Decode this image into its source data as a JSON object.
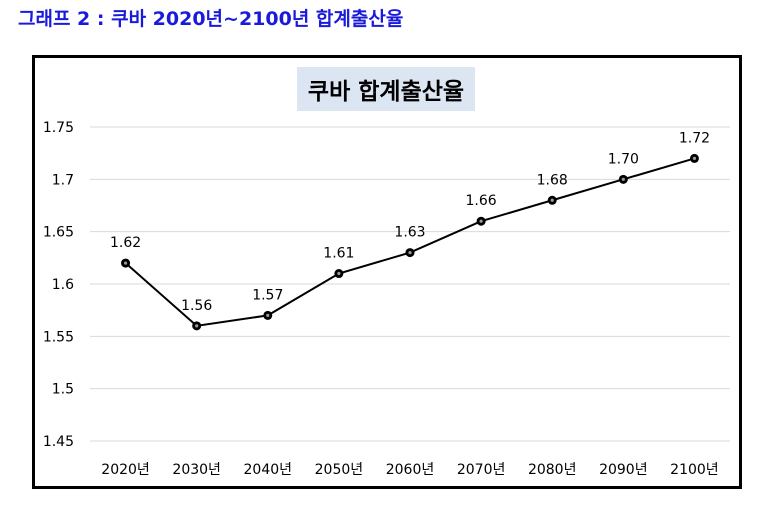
{
  "heading": "그래프 2 : 쿠바 2020년~2100년 합계출산율",
  "colors": {
    "heading": "#1a1adb",
    "title_bg": "#dce6f2",
    "line": "#000000",
    "grid": "#d9d9d9"
  },
  "chart_data": {
    "type": "line",
    "title": "쿠바 합계출산율",
    "xlabel": "",
    "ylabel": "",
    "categories": [
      "2020년",
      "2030년",
      "2040년",
      "2050년",
      "2060년",
      "2070년",
      "2080년",
      "2090년",
      "2100년"
    ],
    "series": [
      {
        "name": "합계출산율",
        "values": [
          1.62,
          1.56,
          1.57,
          1.61,
          1.63,
          1.66,
          1.68,
          1.7,
          1.72
        ],
        "labels": [
          "1.62",
          "1.56",
          "1.57",
          "1.61",
          "1.63",
          "1.66",
          "1.68",
          "1.70",
          "1.72"
        ]
      }
    ],
    "yticks": [
      "1.45",
      "1.5",
      "1.55",
      "1.6",
      "1.65",
      "1.7",
      "1.75"
    ],
    "ylim": [
      1.45,
      1.75
    ],
    "grid": true,
    "legend": "none"
  }
}
